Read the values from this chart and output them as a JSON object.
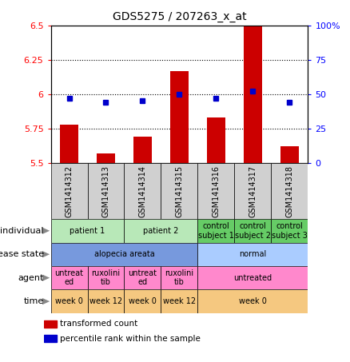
{
  "title": "GDS5275 / 207263_x_at",
  "samples": [
    "GSM1414312",
    "GSM1414313",
    "GSM1414314",
    "GSM1414315",
    "GSM1414316",
    "GSM1414317",
    "GSM1414318"
  ],
  "red_values": [
    5.78,
    5.57,
    5.69,
    6.17,
    5.83,
    6.5,
    5.62
  ],
  "blue_values": [
    47,
    44,
    45,
    50,
    47,
    52,
    44
  ],
  "ylim_left": [
    5.5,
    6.5
  ],
  "ylim_right": [
    0,
    100
  ],
  "yticks_left": [
    5.5,
    5.75,
    6.0,
    6.25,
    6.5
  ],
  "yticks_right": [
    0,
    25,
    50,
    75,
    100
  ],
  "ytick_labels_left": [
    "5.5",
    "5.75",
    "6",
    "6.25",
    "6.5"
  ],
  "ytick_labels_right": [
    "0",
    "25",
    "50",
    "75",
    "100%"
  ],
  "hlines": [
    5.75,
    6.0,
    6.25
  ],
  "bar_color": "#cc0000",
  "dot_color": "#0000cc",
  "bar_width": 0.5,
  "annotation_rows": [
    {
      "label": "individual",
      "cells": [
        {
          "text": "patient 1",
          "span": [
            0,
            1
          ],
          "color": "#b8e8b8"
        },
        {
          "text": "patient 2",
          "span": [
            2,
            3
          ],
          "color": "#b8e8b8"
        },
        {
          "text": "control\nsubject 1",
          "span": [
            4,
            4
          ],
          "color": "#66cc66"
        },
        {
          "text": "control\nsubject 2",
          "span": [
            5,
            5
          ],
          "color": "#66cc66"
        },
        {
          "text": "control\nsubject 3",
          "span": [
            6,
            6
          ],
          "color": "#66cc66"
        }
      ]
    },
    {
      "label": "disease state",
      "cells": [
        {
          "text": "alopecia areata",
          "span": [
            0,
            3
          ],
          "color": "#7799dd"
        },
        {
          "text": "normal",
          "span": [
            4,
            6
          ],
          "color": "#aaccff"
        }
      ]
    },
    {
      "label": "agent",
      "cells": [
        {
          "text": "untreat\ned",
          "span": [
            0,
            0
          ],
          "color": "#ff88cc"
        },
        {
          "text": "ruxolini\ntib",
          "span": [
            1,
            1
          ],
          "color": "#ff88cc"
        },
        {
          "text": "untreat\ned",
          "span": [
            2,
            2
          ],
          "color": "#ff88cc"
        },
        {
          "text": "ruxolini\ntib",
          "span": [
            3,
            3
          ],
          "color": "#ff88cc"
        },
        {
          "text": "untreated",
          "span": [
            4,
            6
          ],
          "color": "#ff88cc"
        }
      ]
    },
    {
      "label": "time",
      "cells": [
        {
          "text": "week 0",
          "span": [
            0,
            0
          ],
          "color": "#f5c880"
        },
        {
          "text": "week 12",
          "span": [
            1,
            1
          ],
          "color": "#f5c880"
        },
        {
          "text": "week 0",
          "span": [
            2,
            2
          ],
          "color": "#f5c880"
        },
        {
          "text": "week 12",
          "span": [
            3,
            3
          ],
          "color": "#f5c880"
        },
        {
          "text": "week 0",
          "span": [
            4,
            6
          ],
          "color": "#f5c880"
        }
      ]
    }
  ],
  "legend_items": [
    {
      "color": "#cc0000",
      "label": "transformed count"
    },
    {
      "color": "#0000cc",
      "label": "percentile rank within the sample"
    }
  ],
  "background_color": "#ffffff",
  "sample_box_color": "#d0d0d0"
}
